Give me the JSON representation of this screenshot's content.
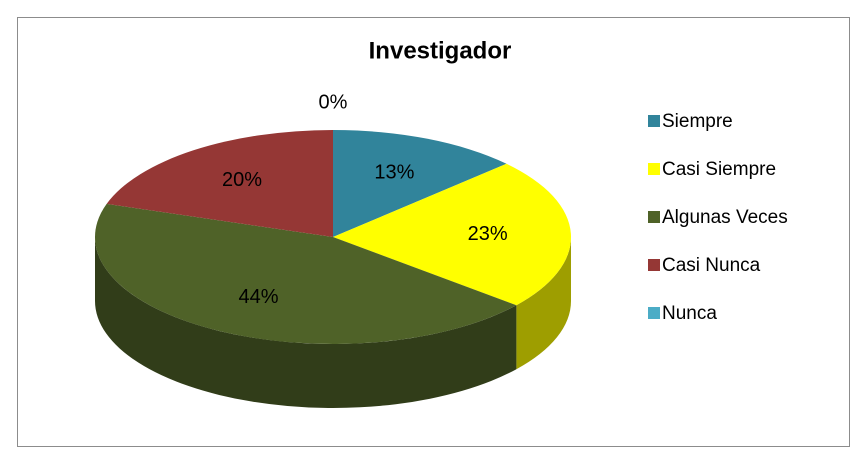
{
  "chart_data": {
    "type": "pie3d",
    "title": "Investigador",
    "categories": [
      "Siempre",
      "Casi Siempre",
      "Algunas Veces",
      "Casi Nunca",
      "Nunca"
    ],
    "values": [
      13,
      23,
      44,
      20,
      0
    ],
    "value_labels": [
      "13%",
      "23%",
      "44%",
      "20%",
      "0%"
    ],
    "colors": [
      "#31849b",
      "#ffff00",
      "#4f6228",
      "#953735",
      "#4bacc6"
    ],
    "legend": "right"
  }
}
